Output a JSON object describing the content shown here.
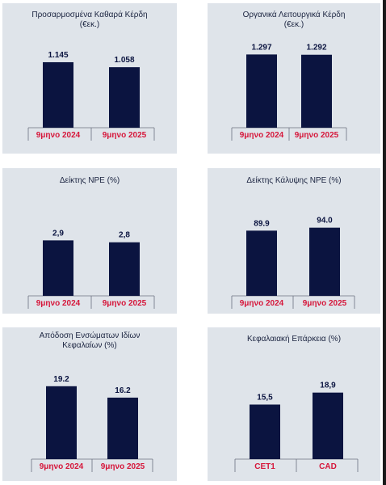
{
  "chart_data": [
    {
      "type": "bar",
      "title": "Προσαρμοσμένα Καθαρά Κέρδη\n(€εκ.)",
      "categories": [
        "9μηνο 2024",
        "9μηνο 2025"
      ],
      "values": [
        1145,
        1058
      ],
      "data_labels": [
        "1.145",
        "1.058"
      ],
      "ylim": [
        0,
        1300
      ]
    },
    {
      "type": "bar",
      "title": "Οργανικά Λειτουργικά Κέρδη\n(€εκ.)",
      "categories": [
        "9μηνο 2024",
        "9μηνο 2025"
      ],
      "values": [
        1297,
        1292
      ],
      "data_labels": [
        "1.297",
        "1.292"
      ],
      "ylim": [
        0,
        1460
      ]
    },
    {
      "type": "bar",
      "title": "Δείκτης NPE (%)",
      "categories": [
        "9μηνο 2024",
        "9μηνο 2025"
      ],
      "values": [
        2.9,
        2.8
      ],
      "data_labels": [
        "2,9",
        "2,8"
      ],
      "ylim": [
        0,
        3.55
      ]
    },
    {
      "type": "bar",
      "title": "Δείκτης Κάλυψης NPE (%)",
      "categories": [
        "9μηνο 2024",
        "9μηνο 2025"
      ],
      "values": [
        89.9,
        94.0
      ],
      "data_labels": [
        "89.9",
        "94.0"
      ],
      "ylim": [
        0,
        107
      ]
    },
    {
      "type": "bar",
      "title": "Απόδοση Ενσώματων Ιδίων\nΚεφαλαίων (%)",
      "categories": [
        "9μηνο 2024",
        "9μηνο 2025"
      ],
      "values": [
        19.2,
        16.2
      ],
      "data_labels": [
        "19.2",
        "16.2"
      ],
      "ylim": [
        0,
        21.5
      ]
    },
    {
      "type": "bar",
      "title": "Κεφαλαιακή Επάρκεια (%)",
      "categories": [
        "CET1",
        "CAD"
      ],
      "values": [
        15.5,
        18.9
      ],
      "data_labels": [
        "15,5",
        "18,9"
      ],
      "ylim": [
        0,
        22.5
      ]
    }
  ]
}
